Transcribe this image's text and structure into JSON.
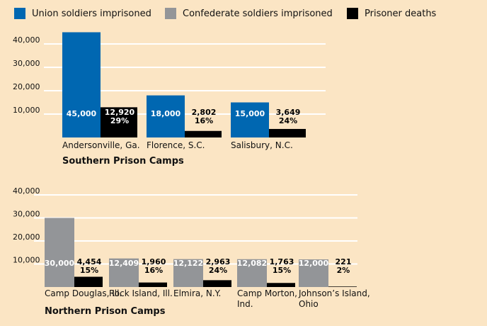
{
  "legend": [
    {
      "label": "Union soldiers imprisoned",
      "color": "#0067b1"
    },
    {
      "label": "Confederate soldiers imprisoned",
      "color": "#939598"
    },
    {
      "label": "Prisoner deaths",
      "color": "#000000"
    }
  ],
  "chart_data": [
    {
      "type": "bar",
      "title": "Southern Prison Camps",
      "y_ticks": [
        "10,000",
        "20,000",
        "30,000",
        "40,000"
      ],
      "ylim": [
        0,
        45000
      ],
      "grid": true,
      "categories": [
        "Andersonville, Ga.",
        "Florence, S.C.",
        "Salisbury, N.C."
      ],
      "series": [
        {
          "name": "Union soldiers imprisoned",
          "color": "#0067b1",
          "values": [
            45000,
            18000,
            15000
          ],
          "labels": [
            "45,000",
            "18,000",
            "15,000"
          ]
        },
        {
          "name": "Prisoner deaths",
          "color": "#000000",
          "values": [
            12920,
            2802,
            3649
          ],
          "labels": [
            "12,920",
            "2,802",
            "3,649"
          ],
          "percent": [
            "29%",
            "16%",
            "24%"
          ]
        }
      ]
    },
    {
      "type": "bar",
      "title": "Northern Prison Camps",
      "y_ticks": [
        "10,000",
        "20,000",
        "30,000",
        "40,000"
      ],
      "ylim": [
        0,
        40000
      ],
      "grid": true,
      "categories": [
        "Camp Douglas, Ill.",
        "Rock Island, Ill.",
        "Elmira, N.Y.",
        "Camp Morton,\nInd.",
        "Johnson’s Island,\nOhio"
      ],
      "series": [
        {
          "name": "Confederate soldiers imprisoned",
          "color": "#939598",
          "values": [
            30000,
            12409,
            12122,
            12082,
            12000
          ],
          "labels": [
            "30,000",
            "12,409",
            "12,122",
            "12,082",
            "12,000"
          ]
        },
        {
          "name": "Prisoner deaths",
          "color": "#000000",
          "values": [
            4454,
            1960,
            2963,
            1763,
            221
          ],
          "labels": [
            "4,454",
            "1,960",
            "2,963",
            "1,763",
            "221"
          ],
          "percent": [
            "15%",
            "16%",
            "24%",
            "15%",
            "2%"
          ]
        }
      ]
    }
  ]
}
